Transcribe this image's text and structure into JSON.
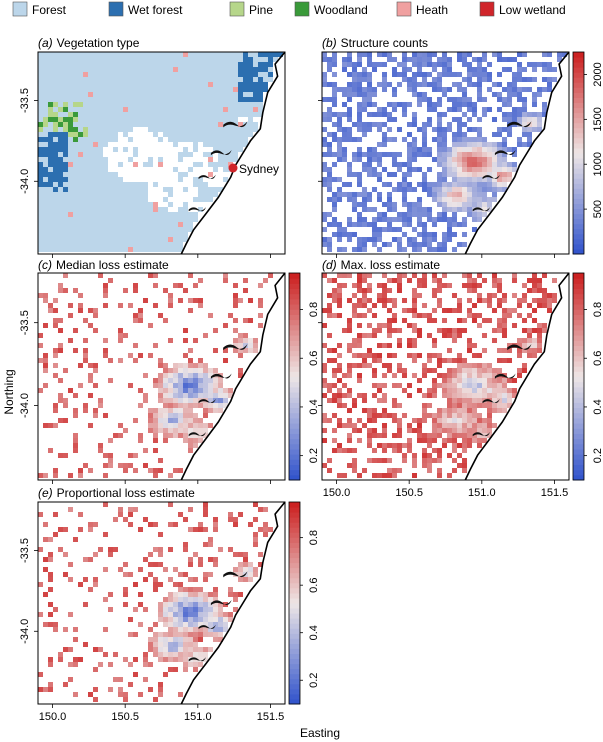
{
  "legend": {
    "items": [
      {
        "label": "Forest",
        "color": "#bcd6ea"
      },
      {
        "label": "Wet forest",
        "color": "#2c6fb0"
      },
      {
        "label": "Pine",
        "color": "#b6d68a"
      },
      {
        "label": "Woodland",
        "color": "#3a9a3a"
      },
      {
        "label": "Heath",
        "color": "#f0a0a0"
      },
      {
        "label": "Low wetland",
        "color": "#d0252a"
      }
    ]
  },
  "axes": {
    "xlabel": "Easting",
    "ylabel": "Northing",
    "x_ticks": [
      "150.0",
      "150.5",
      "151.0",
      "151.5"
    ],
    "y_ticks": [
      "-33.5",
      "-34.0"
    ]
  },
  "annotations": {
    "city": "Sydney"
  },
  "chart_data": [
    {
      "type": "heatmap",
      "letter": "(a)",
      "title": "Vegetation type",
      "xlim": [
        149.9,
        151.6
      ],
      "ylim": [
        -34.45,
        -33.2
      ],
      "categorical": true
    },
    {
      "type": "heatmap",
      "letter": "(b)",
      "title": "Structure counts",
      "xlim": [
        149.9,
        151.6
      ],
      "ylim": [
        -34.45,
        -33.2
      ],
      "colorbar": {
        "ticks": [
          500,
          1000,
          1500,
          2000
        ],
        "range": [
          0,
          2250
        ]
      }
    },
    {
      "type": "heatmap",
      "letter": "(c)",
      "title": "Median loss estimate",
      "xlim": [
        149.9,
        151.6
      ],
      "ylim": [
        -34.45,
        -33.2
      ],
      "colorbar": {
        "ticks": [
          0.2,
          0.4,
          0.6,
          0.8
        ],
        "range": [
          0.1,
          0.95
        ]
      }
    },
    {
      "type": "heatmap",
      "letter": "(d)",
      "title": "Max. loss estimate",
      "xlim": [
        149.9,
        151.6
      ],
      "ylim": [
        -34.45,
        -33.2
      ],
      "colorbar": {
        "ticks": [
          0.2,
          0.4,
          0.6,
          0.8
        ],
        "range": [
          0.1,
          0.95
        ]
      }
    },
    {
      "type": "heatmap",
      "letter": "(e)",
      "title": "Proportional loss estimate",
      "xlim": [
        149.9,
        151.6
      ],
      "ylim": [
        -34.45,
        -33.2
      ],
      "colorbar": {
        "ticks": [
          0.2,
          0.4,
          0.6,
          0.8
        ],
        "range": [
          0.1,
          0.95
        ]
      }
    }
  ]
}
